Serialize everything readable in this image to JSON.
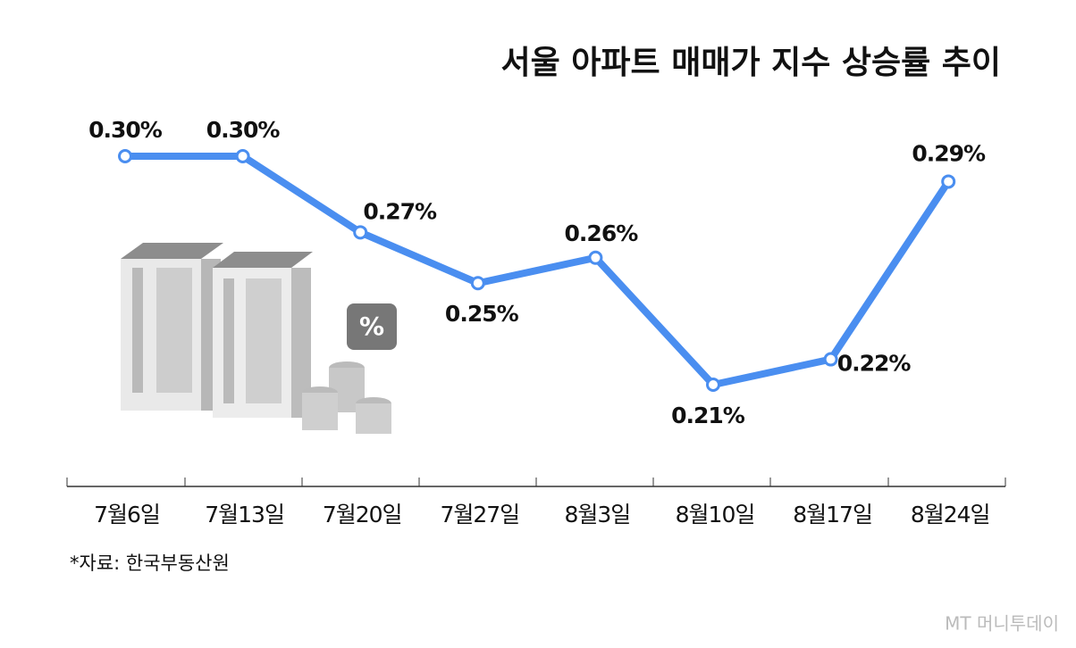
{
  "chart_data": {
    "type": "line",
    "title": "서울 아파트 매매가 지수 상승률 추이",
    "categories": [
      "7월6일",
      "7월13일",
      "7월20일",
      "7월27일",
      "8월3일",
      "8월10일",
      "8월17일",
      "8월24일"
    ],
    "series": [
      {
        "name": null,
        "color": "#4a8ef0",
        "values": [
          0.3,
          0.3,
          0.27,
          0.25,
          0.26,
          0.21,
          0.22,
          0.29
        ],
        "value_labels": [
          "0.30%",
          "0.30%",
          "0.27%",
          "0.25%",
          "0.26%",
          "0.21%",
          "0.22%",
          "0.29%"
        ]
      }
    ],
    "source": "*자료: 한국부동산원",
    "logo": "MT 머니투데이"
  }
}
